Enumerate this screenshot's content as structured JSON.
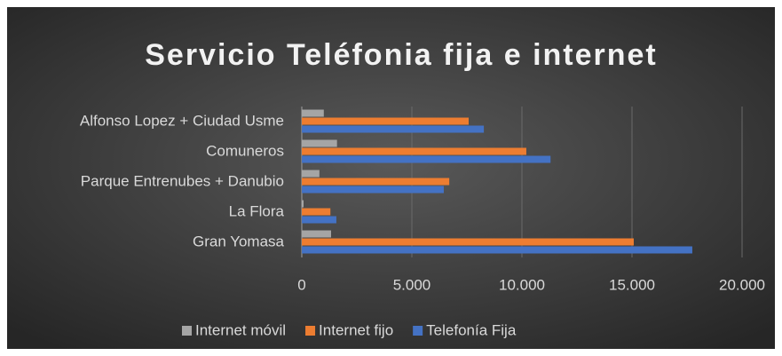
{
  "chart_data": {
    "type": "hbar",
    "title": "Servicio  Teléfonia fija e internet",
    "categories": [
      "Alfonso Lopez + Ciudad Usme",
      "Comuneros",
      "Parque Entrenubes + Danubio",
      "La Flora",
      "Gran Yomasa"
    ],
    "series": [
      {
        "name": "Internet móvil",
        "color": "#a5a5a5",
        "values": [
          1000,
          1600,
          800,
          80,
          1330
        ]
      },
      {
        "name": "Internet fijo",
        "color": "#ed7d31",
        "values": [
          7580,
          10200,
          6700,
          1300,
          15080
        ]
      },
      {
        "name": "Telefonía Fija",
        "color": "#4472c4",
        "values": [
          8270,
          11300,
          6450,
          1570,
          17740
        ]
      }
    ],
    "xlim": [
      0,
      20000
    ],
    "xticks": [
      0,
      {
        "value": 5000,
        "label": "5.000"
      },
      {
        "value": 10000,
        "label": "10.000"
      },
      {
        "value": 15000,
        "label": "15.000"
      },
      {
        "value": 20000,
        "label": "20.000"
      }
    ],
    "grid": true,
    "legend": "bottom"
  }
}
